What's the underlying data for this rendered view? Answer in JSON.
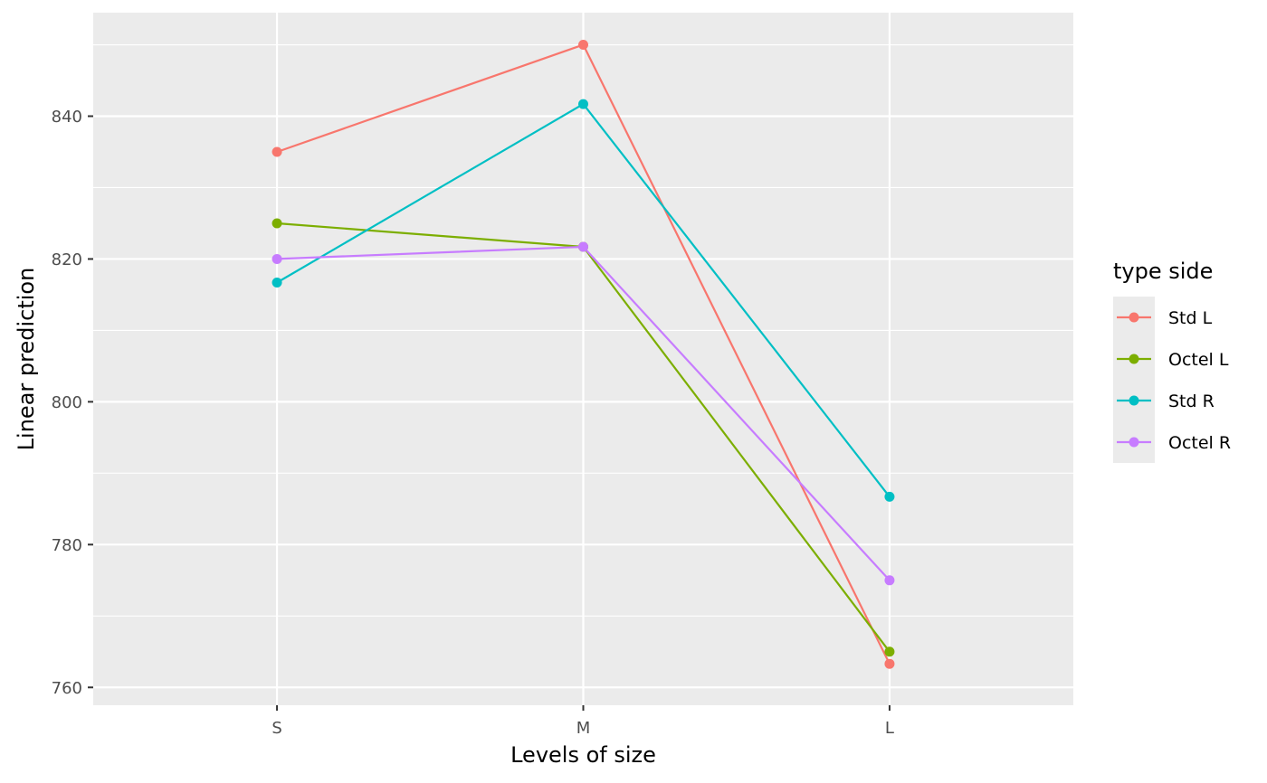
{
  "chart_data": {
    "type": "line",
    "xlabel": "Levels of size",
    "ylabel": "Linear prediction",
    "categories": [
      "S",
      "M",
      "L"
    ],
    "ylim": [
      757.5,
      854.5
    ],
    "yticks": [
      760,
      780,
      800,
      820,
      840
    ],
    "grid": true,
    "legend": {
      "title": "type side",
      "placement": "right"
    },
    "series": [
      {
        "name": "Std L",
        "color": "#F8766D",
        "values": [
          835,
          850,
          763.3
        ]
      },
      {
        "name": "Octel L",
        "color": "#7CAE00",
        "values": [
          825,
          821.7,
          765
        ]
      },
      {
        "name": "Std R",
        "color": "#00BFC4",
        "values": [
          816.7,
          841.7,
          786.7
        ]
      },
      {
        "name": "Octel R",
        "color": "#C77CFF",
        "values": [
          820,
          821.7,
          775
        ]
      }
    ]
  }
}
